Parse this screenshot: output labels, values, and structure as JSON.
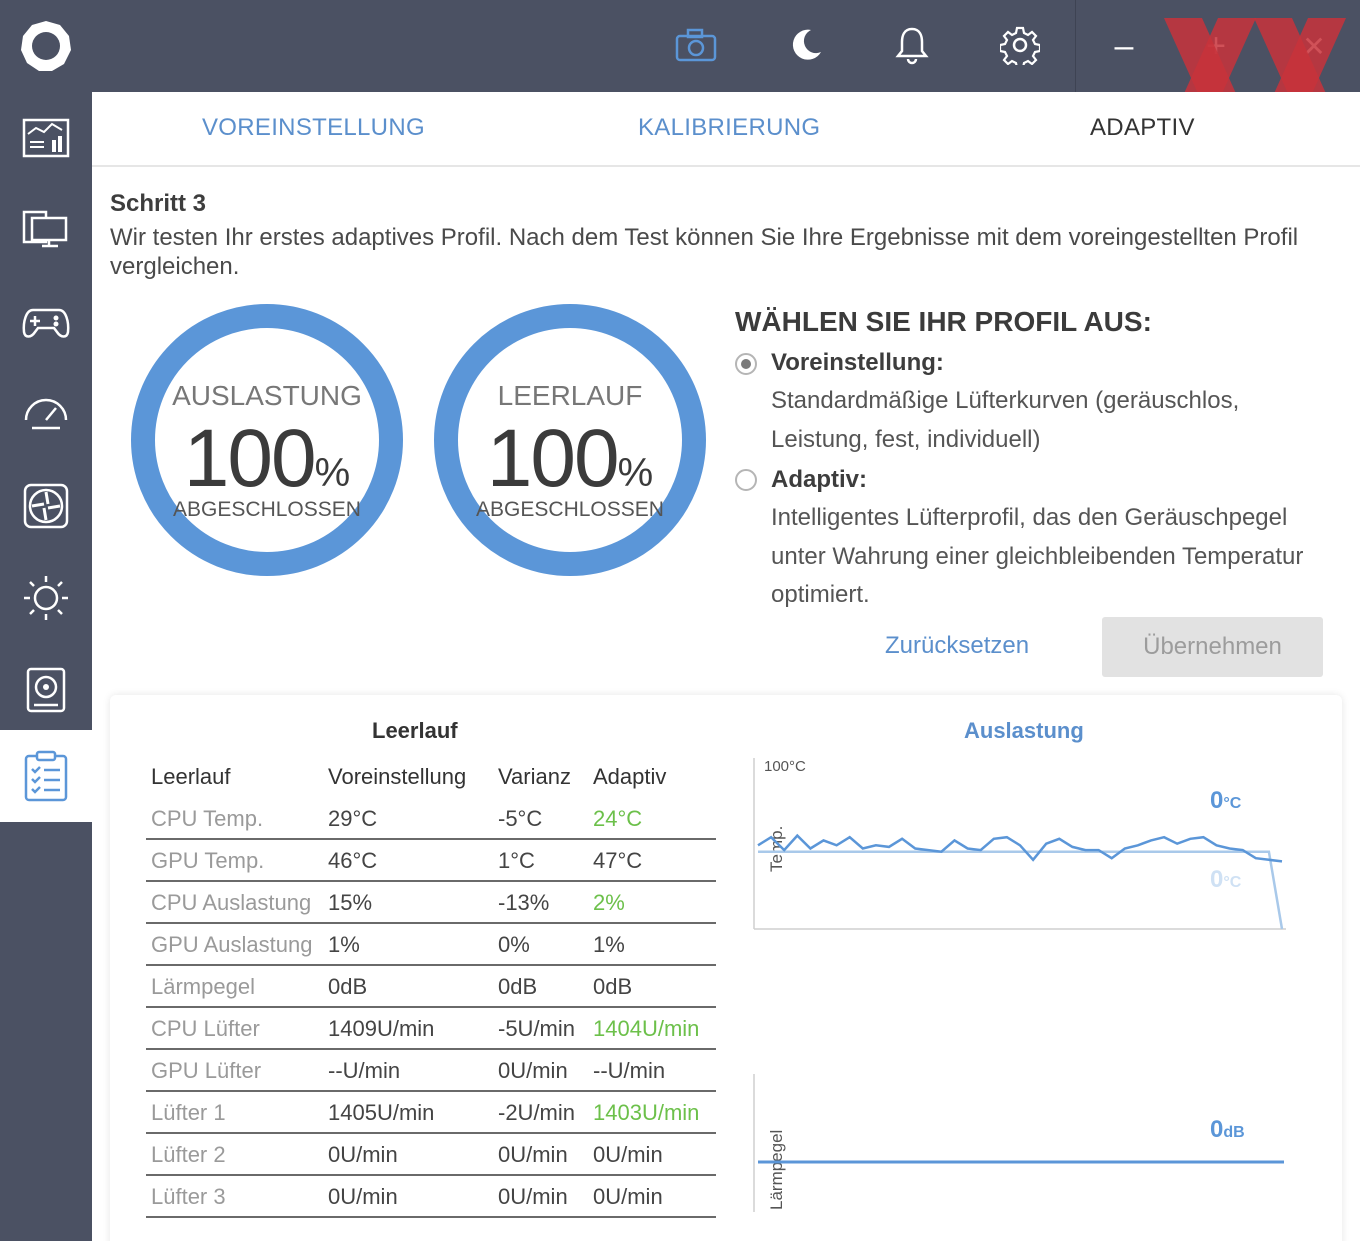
{
  "topbar": {
    "icons": [
      "app-logo",
      "camera-icon",
      "moon-icon",
      "bell-icon",
      "gear-icon"
    ],
    "window_buttons": {
      "minimize": "–",
      "maximize": "+",
      "close": "✕"
    }
  },
  "sidebar": {
    "items": [
      "dashboard-icon",
      "monitor-icon",
      "gamepad-icon",
      "gauge-icon",
      "fan-icon",
      "sun-icon",
      "disk-icon",
      "clipboard-icon"
    ],
    "active_index": 7
  },
  "tabs": [
    {
      "label": "VOREINSTELLUNG"
    },
    {
      "label": "KALIBRIERUNG"
    },
    {
      "label": "ADAPTIV"
    }
  ],
  "step": {
    "title": "Schritt 3",
    "description": "Wir testen Ihr erstes adaptives Profil. Nach dem Test können Sie Ihre Ergebnisse mit dem voreingestellten Profil vergleichen."
  },
  "rings": [
    {
      "label": "AUSLASTUNG",
      "value": "100",
      "unit": "%",
      "sub": "ABGESCHLOSSEN",
      "progress": 1.0
    },
    {
      "label": "LEERLAUF",
      "value": "100",
      "unit": "%",
      "sub": "ABGESCHLOSSEN",
      "progress": 1.0
    }
  ],
  "profile": {
    "title": "WÄHLEN SIE IHR PROFIL AUS:",
    "options": [
      {
        "label": "Voreinstellung:",
        "desc": "Standardmäßige Lüfterkurven (geräuschlos, Leistung, fest, individuell)",
        "selected": true
      },
      {
        "label": "Adaptiv:",
        "desc": "Intelligentes Lüfterprofil, das den Geräuschpegel unter Wahrung einer gleichbleibenden Temperatur optimiert.",
        "selected": false
      }
    ],
    "reset_label": "Zurücksetzen",
    "apply_label": "Übernehmen"
  },
  "table": {
    "title": "Leerlauf",
    "headers": [
      "Leerlauf",
      "Voreinstellung",
      "Varianz",
      "Adaptiv"
    ],
    "rows": [
      {
        "name": "CPU Temp.",
        "preset": "29°C",
        "variance": "-5°C",
        "adaptive": "24°C",
        "highlight": true
      },
      {
        "name": "GPU Temp.",
        "preset": "46°C",
        "variance": "1°C",
        "adaptive": "47°C",
        "highlight": false
      },
      {
        "name": "CPU Auslastung",
        "preset": "15%",
        "variance": "-13%",
        "adaptive": "2%",
        "highlight": true
      },
      {
        "name": "GPU Auslastung",
        "preset": "1%",
        "variance": "0%",
        "adaptive": "1%",
        "highlight": false
      },
      {
        "name": "Lärmpegel",
        "preset": "0dB",
        "variance": "0dB",
        "adaptive": "0dB",
        "highlight": false
      },
      {
        "name": "CPU Lüfter",
        "preset": "1409U/min",
        "variance": "-5U/min",
        "adaptive": "1404U/min",
        "highlight": true
      },
      {
        "name": "GPU Lüfter",
        "preset": "--U/min",
        "variance": "0U/min",
        "adaptive": "--U/min",
        "highlight": false
      },
      {
        "name": "Lüfter 1",
        "preset": "1405U/min",
        "variance": "-2U/min",
        "adaptive": "1403U/min",
        "highlight": true
      },
      {
        "name": "Lüfter 2",
        "preset": "0U/min",
        "variance": "0U/min",
        "adaptive": "0U/min",
        "highlight": false
      },
      {
        "name": "Lüfter 3",
        "preset": "0U/min",
        "variance": "0U/min",
        "adaptive": "0U/min",
        "highlight": false
      }
    ]
  },
  "charts": {
    "title": "Auslastung",
    "temp": {
      "ymax_label": "100°C",
      "ylabel": "Temp.",
      "value1": "0",
      "unit1": "°C",
      "value2": "0",
      "unit2": "°C"
    },
    "noise": {
      "ylabel": "Lärmpegel",
      "value": "0",
      "unit": "dB"
    }
  },
  "chart_data": [
    {
      "type": "line",
      "title": "Auslastung",
      "ylabel": "Temp.",
      "ylim": [
        0,
        100
      ],
      "series": [
        {
          "values": [
            52,
            57,
            49,
            58,
            50,
            55,
            52,
            57,
            50,
            52,
            51,
            56,
            50,
            49,
            48,
            55,
            50,
            49,
            56,
            57,
            52,
            43,
            53,
            56,
            51,
            49,
            49,
            44,
            50,
            52,
            55,
            57,
            53,
            56,
            57,
            52,
            50,
            49,
            44,
            43,
            42
          ]
        },
        {
          "values": [
            48,
            48,
            48,
            48,
            48,
            48,
            48,
            48,
            48,
            48,
            48,
            48,
            48,
            48,
            48,
            48,
            48,
            48,
            48,
            48,
            48,
            48,
            48,
            48,
            48,
            48,
            48,
            48,
            48,
            48,
            48,
            48,
            48,
            48,
            48,
            48,
            48,
            48,
            48,
            48,
            0
          ]
        }
      ]
    },
    {
      "type": "line",
      "ylabel": "Lärmpegel",
      "series": [
        {
          "values": [
            0,
            0,
            0,
            0,
            0,
            0,
            0,
            0,
            0,
            0
          ]
        }
      ]
    }
  ],
  "colors": {
    "accent": "#5b8fcc",
    "ring": "#5b96d8",
    "sidebar": "#4b5163",
    "good": "#6cc04a"
  }
}
